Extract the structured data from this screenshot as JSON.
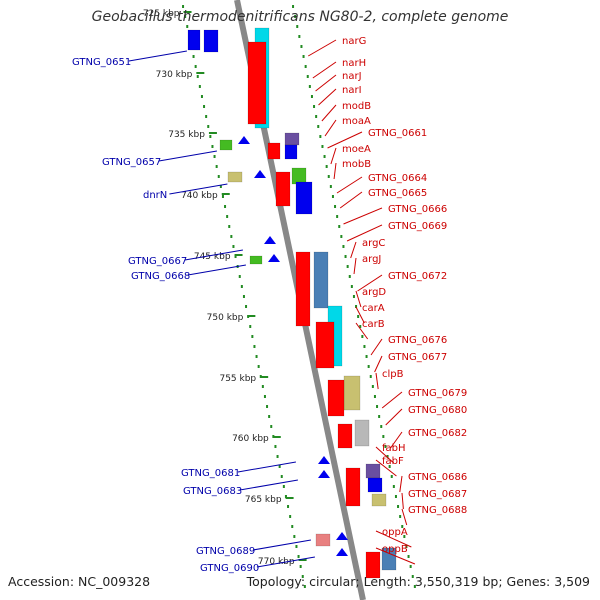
{
  "title": "Geobacillus thermodenitrificans NG80-2, complete genome",
  "accession_text": "Accession: NC_009328",
  "topology_text": "Topology: circular; Length: 3,550,319 bp; Genes: 3,509",
  "colors": {
    "right_labels": "#cc0000",
    "left_labels": "#0000aa",
    "backbone": "#888888",
    "tick": "#228b22",
    "gene_red": "#ff0000",
    "gene_blue": "#0000ee",
    "gene_cyan": "#00d8e8",
    "gene_steel": "#4a7fb5",
    "gene_olive": "#c8c070",
    "gene_purple": "#6a4fa0",
    "gene_green": "#44bb22",
    "gene_grey": "#b8b8b8",
    "gene_pink": "#e88080"
  },
  "axis_ticks": [
    "725 kbp",
    "730 kbp",
    "735 kbp",
    "740 kbp",
    "745 kbp",
    "750 kbp",
    "755 kbp",
    "760 kbp",
    "765 kbp",
    "770 kbp"
  ],
  "right_genes": [
    "narG",
    "narH",
    "narJ",
    "narI",
    "modB",
    "moaA",
    "GTNG_0661",
    "moeA",
    "mobB",
    "GTNG_0664",
    "GTNG_0665",
    "GTNG_0666",
    "GTNG_0669",
    "argC",
    "argJ",
    "GTNG_0672",
    "argD",
    "carA",
    "carB",
    "GTNG_0676",
    "GTNG_0677",
    "clpB",
    "GTNG_0679",
    "GTNG_0680",
    "GTNG_0682",
    "fabH",
    "fabF",
    "GTNG_0686",
    "GTNG_0687",
    "GTNG_0688",
    "oppA",
    "oppB"
  ],
  "left_genes": [
    "GTNG_0651",
    "GTNG_0657",
    "dnrN",
    "GTNG_0667",
    "GTNG_0668",
    "GTNG_0681",
    "GTNG_0683",
    "GTNG_0689",
    "GTNG_0690"
  ]
}
